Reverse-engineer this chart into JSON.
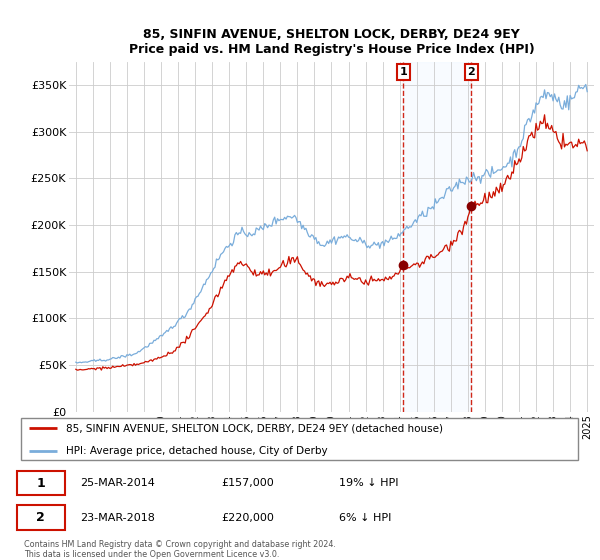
{
  "title": "85, SINFIN AVENUE, SHELTON LOCK, DERBY, DE24 9EY",
  "subtitle": "Price paid vs. HM Land Registry's House Price Index (HPI)",
  "legend_line1": "85, SINFIN AVENUE, SHELTON LOCK, DERBY, DE24 9EY (detached house)",
  "legend_line2": "HPI: Average price, detached house, City of Derby",
  "transaction1_date": "25-MAR-2014",
  "transaction1_price": "£157,000",
  "transaction1_hpi": "19% ↓ HPI",
  "transaction1_year": 2014.21,
  "transaction1_value": 157000,
  "transaction2_date": "23-MAR-2018",
  "transaction2_price": "£220,000",
  "transaction2_hpi": "6% ↓ HPI",
  "transaction2_year": 2018.21,
  "transaction2_value": 220000,
  "copyright": "Contains HM Land Registry data © Crown copyright and database right 2024.\nThis data is licensed under the Open Government Licence v3.0.",
  "hpi_color": "#7aaddb",
  "price_color": "#cc1100",
  "marker_color": "#880000",
  "annotation_box_color": "#cc1100",
  "shading_color": "#ddeeff",
  "ylim": [
    0,
    375000
  ],
  "yticks": [
    0,
    50000,
    100000,
    150000,
    200000,
    250000,
    300000,
    350000
  ],
  "ytick_labels": [
    "£0",
    "£50K",
    "£100K",
    "£150K",
    "£200K",
    "£250K",
    "£300K",
    "£350K"
  ]
}
